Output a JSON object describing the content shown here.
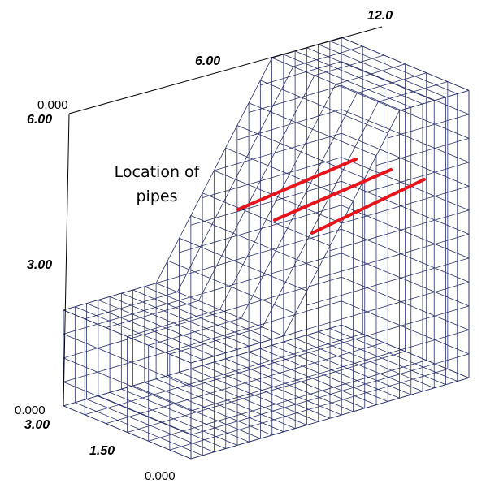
{
  "axis_labels": {
    "length_end": "12.0",
    "length_mid": "6.00",
    "length_start": "0.000",
    "height_top": "6.00",
    "height_mid": "3.00",
    "height_zero": "0.000",
    "depth_end": "3.00",
    "depth_mid": "1.50",
    "depth_start": "0.000"
  },
  "annotation": {
    "lines": [
      "Location of",
      "pipes"
    ]
  }
}
